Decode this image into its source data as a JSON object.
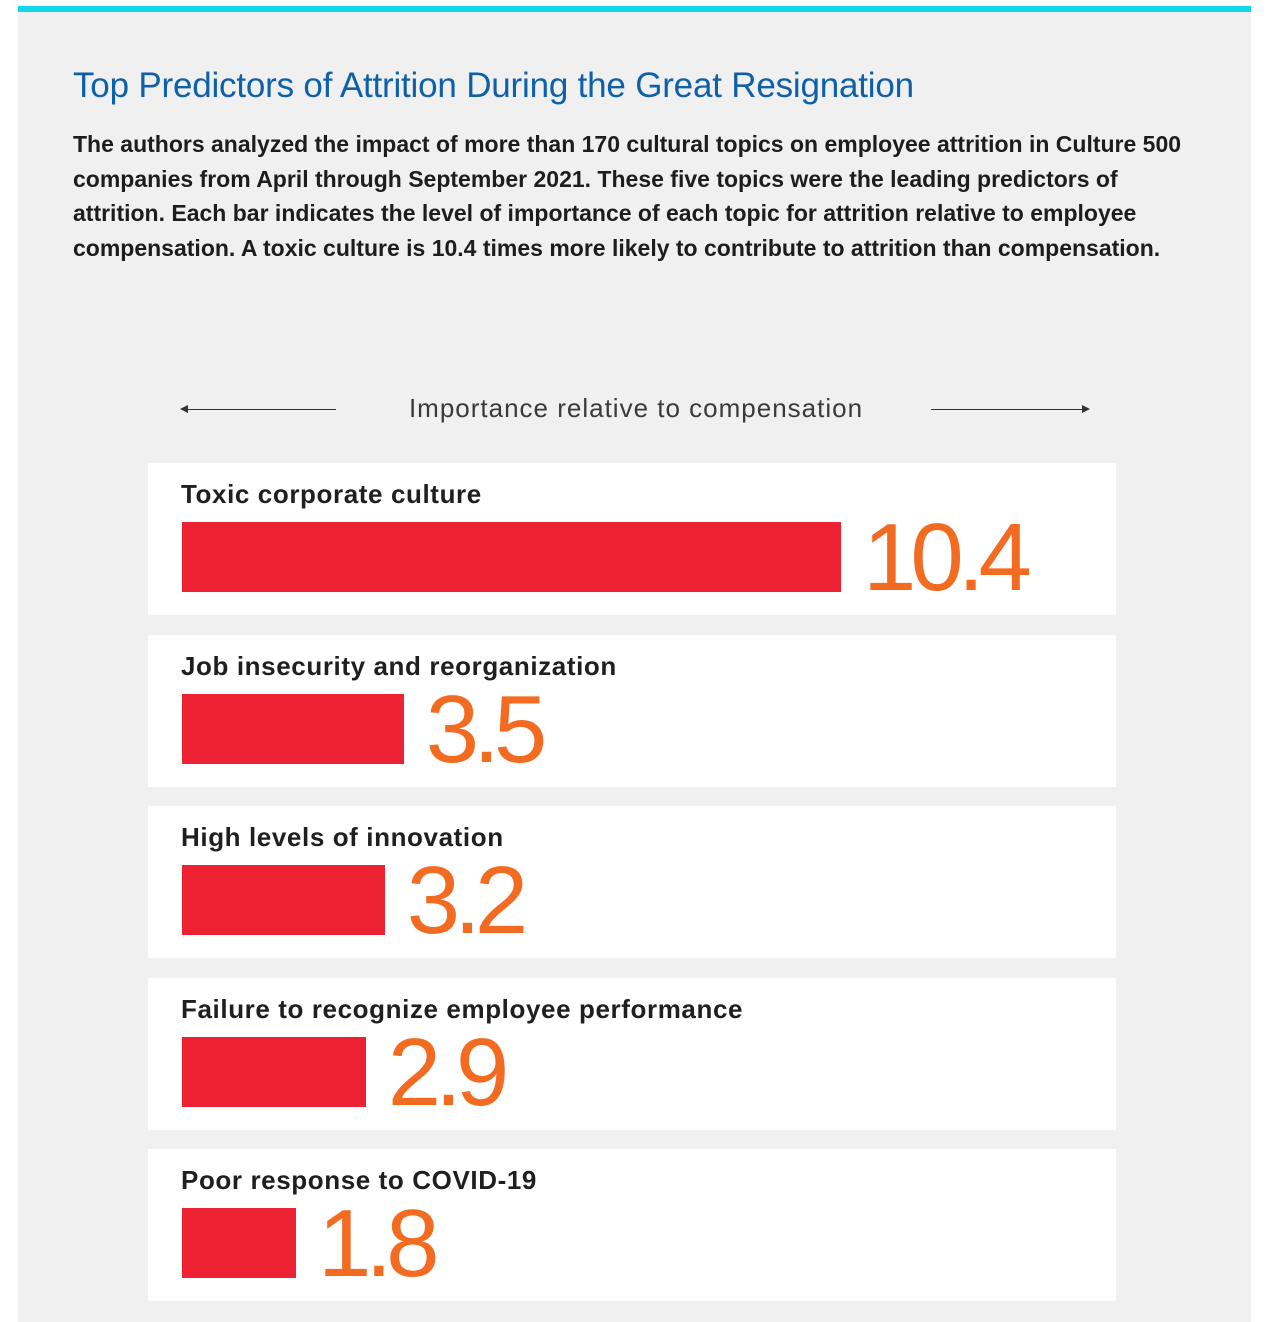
{
  "header": {
    "title": "Top Predictors of Attrition During the Great Resignation",
    "description": "The authors analyzed the impact of more than 170 cultural topics on employee attrition in Culture 500 companies from April through September 2021. These five topics were the leading predictors of attrition. Each bar indicates the level of importance of each topic for attrition relative to employee compensation. A toxic culture is 10.4 times more likely to contribute to attrition than compensation."
  },
  "colors": {
    "accent_rule": "#12d6ea",
    "title": "#0e61a8",
    "bar": "#ec2233",
    "value": "#f26b21",
    "panel_background": "#f0f0f0"
  },
  "chart_data": {
    "type": "bar",
    "orientation": "horizontal",
    "axis_label": "Importance relative to compensation",
    "categories": [
      "Toxic corporate culture",
      "Job insecurity and reorganization",
      "High levels of innovation",
      "Failure to recognize employee performance",
      "Poor response to COVID-19"
    ],
    "values": [
      10.4,
      3.5,
      3.2,
      2.9,
      1.8
    ],
    "value_labels": [
      "10.4",
      "3.5",
      "3.2",
      "2.9",
      "1.8"
    ],
    "xlim": [
      0,
      10.4
    ],
    "grid": false,
    "legend": "none"
  }
}
